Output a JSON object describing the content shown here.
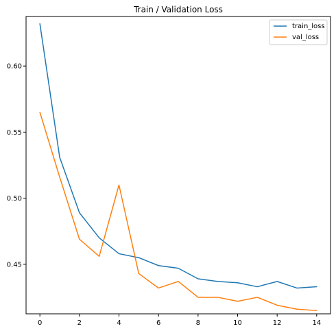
{
  "chart_data": {
    "type": "line",
    "title": "Train / Validation Loss",
    "xlabel": "",
    "ylabel": "",
    "x": [
      0,
      1,
      2,
      3,
      4,
      5,
      6,
      7,
      8,
      9,
      10,
      11,
      12,
      13,
      14
    ],
    "xlim": [
      -0.7,
      14.7
    ],
    "ylim": [
      0.4125,
      0.6375
    ],
    "x_ticks": [
      0,
      2,
      4,
      6,
      8,
      10,
      12,
      14
    ],
    "y_ticks": [
      0.45,
      0.5,
      0.55,
      0.6
    ],
    "x_tick_labels": [
      "0",
      "2",
      "4",
      "6",
      "8",
      "10",
      "12",
      "14"
    ],
    "y_tick_labels": [
      "0.45",
      "0.50",
      "0.55",
      "0.60"
    ],
    "grid": false,
    "legend_position": "top-right",
    "series": [
      {
        "name": "train_loss",
        "color": "#1f77b4",
        "values": [
          0.632,
          0.531,
          0.489,
          0.47,
          0.458,
          0.455,
          0.449,
          0.447,
          0.439,
          0.437,
          0.436,
          0.433,
          0.437,
          0.432,
          0.433
        ]
      },
      {
        "name": "val_loss",
        "color": "#ff7f0e",
        "values": [
          0.565,
          0.516,
          0.469,
          0.456,
          0.51,
          0.443,
          0.432,
          0.437,
          0.425,
          0.425,
          0.422,
          0.425,
          0.419,
          0.416,
          0.415
        ]
      }
    ]
  }
}
